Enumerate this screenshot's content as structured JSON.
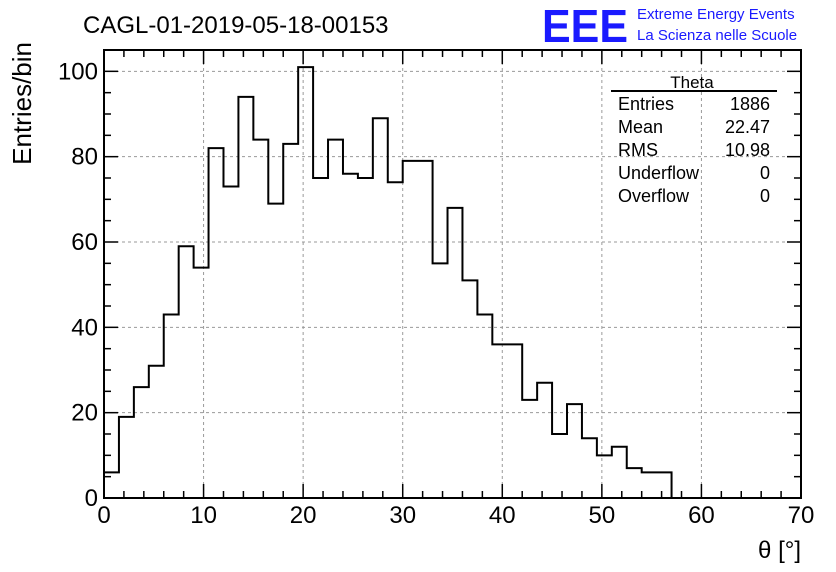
{
  "chart_data": {
    "type": "histogram",
    "title": "CAGL-01-2019-05-18-00153",
    "xlabel": "θ [°]",
    "ylabel": "Entries/bin",
    "xlim": [
      0,
      70
    ],
    "ylim": [
      0,
      105
    ],
    "x_ticks": [
      0,
      10,
      20,
      30,
      40,
      50,
      60,
      70
    ],
    "y_ticks": [
      0,
      20,
      40,
      60,
      80,
      100
    ],
    "grid": true,
    "bin_width": 1.5,
    "bin_start": 0,
    "values": [
      6,
      19,
      26,
      31,
      43,
      59,
      54,
      82,
      73,
      94,
      84,
      69,
      83,
      101,
      75,
      84,
      76,
      75,
      89,
      74,
      79,
      79,
      55,
      68,
      51,
      43,
      36,
      36,
      23,
      27,
      15,
      22,
      14,
      10,
      12,
      7,
      6,
      6,
      0
    ],
    "stats_box": {
      "title": "Theta",
      "rows": [
        {
          "label": "Entries",
          "value": "1886"
        },
        {
          "label": "Mean",
          "value": "22.47"
        },
        {
          "label": "RMS",
          "value": "10.98"
        },
        {
          "label": "Underflow",
          "value": "0"
        },
        {
          "label": "Overflow",
          "value": "0"
        }
      ]
    }
  },
  "logo": {
    "mark": "EEE",
    "line1": "Extreme Energy Events",
    "line2": "La Scienza nelle Scuole",
    "color": "#1a1aff"
  }
}
